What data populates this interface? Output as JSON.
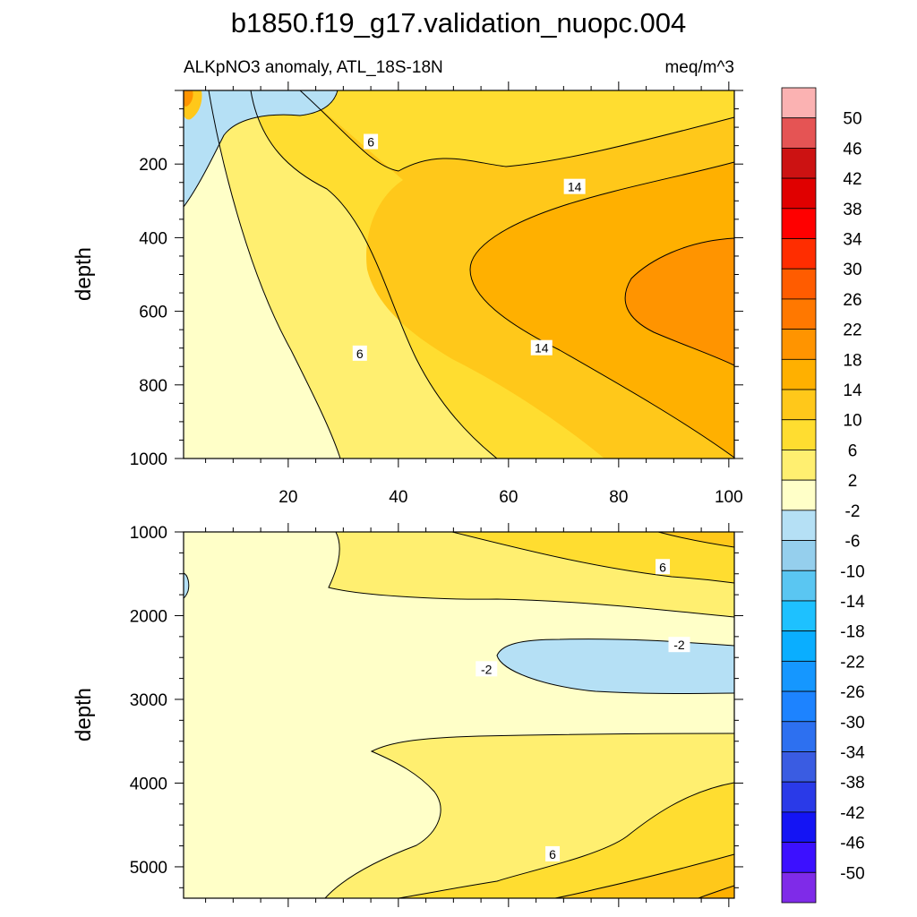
{
  "chart_data": {
    "type": "contour",
    "title": "b1850.f19_g17.validation_nuopc.004",
    "subtitle_left": "ALKpNO3 anomaly, ATL_18S-18N",
    "subtitle_right": "meq/m^3",
    "panels": [
      {
        "ylabel": "depth",
        "xlim": [
          1,
          101
        ],
        "ylim": [
          0,
          1000
        ],
        "y_reversed": true,
        "x_ticks": [
          20,
          40,
          60,
          80,
          100
        ],
        "y_ticks": [
          200,
          400,
          600,
          800,
          1000
        ],
        "contour_labels": [
          {
            "text": "6",
            "x": 35,
            "y": 140
          },
          {
            "text": "14",
            "x": 72,
            "y": 262
          },
          {
            "text": "6",
            "x": 33,
            "y": 715
          },
          {
            "text": "14",
            "x": 66,
            "y": 700
          }
        ]
      },
      {
        "ylabel": "depth",
        "xlim": [
          1,
          101
        ],
        "ylim": [
          1000,
          5375
        ],
        "y_reversed": true,
        "x_ticks": [
          20,
          40,
          60,
          80,
          100
        ],
        "y_ticks": [
          1000,
          2000,
          3000,
          4000,
          5000
        ],
        "contour_labels": [
          {
            "text": "6",
            "x": 88,
            "y": 1420
          },
          {
            "text": "-2",
            "x": 91,
            "y": 2350
          },
          {
            "text": "-2",
            "x": 56,
            "y": 2640
          },
          {
            "text": "6",
            "x": 68,
            "y": 4850
          }
        ]
      }
    ],
    "colorbar": {
      "levels": [
        50,
        46,
        42,
        38,
        34,
        30,
        26,
        22,
        18,
        14,
        10,
        6,
        2,
        -2,
        -6,
        -10,
        -14,
        -18,
        -22,
        -26,
        -30,
        -34,
        -38,
        -42,
        -46,
        -50
      ],
      "level_labels": [
        "50",
        "46",
        "42",
        "38",
        "34",
        "30",
        "26",
        "22",
        "18",
        "14",
        "10",
        "6",
        "2",
        "-2",
        "-6",
        "-10",
        "-14",
        "-18",
        "-22",
        "-26",
        "-30",
        "-34",
        "-38",
        "-42",
        "-46",
        "-50"
      ],
      "colors": [
        "#fbb2b2",
        "#e55454",
        "#cc1212",
        "#e00000",
        "#ff0000",
        "#ff2d00",
        "#ff5c00",
        "#ff7800",
        "#ff9400",
        "#ffb000",
        "#ffc81a",
        "#ffdd30",
        "#ffef70",
        "#ffffc8",
        "#b5e0f5",
        "#95cfed",
        "#5ac6f2",
        "#1ec1ff",
        "#0aaeff",
        "#1597ff",
        "#1d83ff",
        "#2d70f0",
        "#3a5ce2",
        "#2a3ae8",
        "#1414f4",
        "#3c10ff",
        "#7f2be8"
      ]
    }
  }
}
